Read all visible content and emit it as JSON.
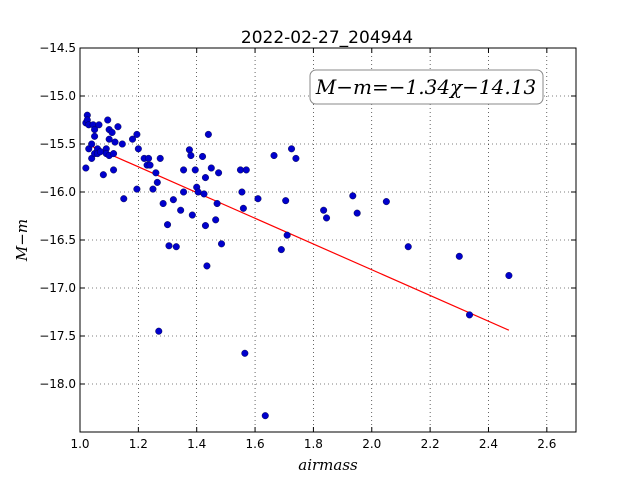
{
  "chart_data": {
    "type": "scatter",
    "title": "2022-02-27_204944",
    "xlabel": "airmass",
    "ylabel": "M−m",
    "xlim": [
      1.0,
      2.7
    ],
    "ylim": [
      -18.5,
      -14.5
    ],
    "y_inverted": true,
    "xticks": [
      1.0,
      1.2,
      1.4,
      1.6,
      1.8,
      2.0,
      2.2,
      2.4,
      2.6
    ],
    "xtick_labels": [
      "1.0",
      "1.2",
      "1.4",
      "1.6",
      "1.8",
      "2.0",
      "2.2",
      "2.4",
      "2.6"
    ],
    "yticks": [
      -14.5,
      -15.0,
      -15.5,
      -16.0,
      -16.5,
      -17.0,
      -17.5,
      -18.0
    ],
    "ytick_labels": [
      "−14.5",
      "−15.0",
      "−15.5",
      "−16.0",
      "−16.5",
      "−17.0",
      "−17.5",
      "−18.0"
    ],
    "grid": true,
    "annotation": "M−m=−1.34χ−14.13",
    "point_color": "#0000cc",
    "line_color": "#ff0000",
    "fit_line": {
      "slope": -1.34,
      "intercept": -14.13,
      "x_range": [
        1.03,
        2.47
      ]
    },
    "points": [
      [
        1.02,
        -15.75
      ],
      [
        1.02,
        -15.28
      ],
      [
        1.025,
        -15.2
      ],
      [
        1.025,
        -15.25
      ],
      [
        1.03,
        -15.55
      ],
      [
        1.03,
        -15.3
      ],
      [
        1.04,
        -15.5
      ],
      [
        1.04,
        -15.65
      ],
      [
        1.045,
        -15.3
      ],
      [
        1.05,
        -15.35
      ],
      [
        1.05,
        -15.42
      ],
      [
        1.05,
        -15.6
      ],
      [
        1.06,
        -15.55
      ],
      [
        1.06,
        -15.6
      ],
      [
        1.065,
        -15.3
      ],
      [
        1.07,
        -15.58
      ],
      [
        1.08,
        -15.82
      ],
      [
        1.09,
        -15.55
      ],
      [
        1.09,
        -15.6
      ],
      [
        1.095,
        -15.25
      ],
      [
        1.1,
        -15.35
      ],
      [
        1.1,
        -15.45
      ],
      [
        1.1,
        -15.62
      ],
      [
        1.11,
        -15.38
      ],
      [
        1.115,
        -15.6
      ],
      [
        1.115,
        -15.77
      ],
      [
        1.12,
        -15.48
      ],
      [
        1.13,
        -15.32
      ],
      [
        1.145,
        -15.5
      ],
      [
        1.15,
        -16.07
      ],
      [
        1.18,
        -15.45
      ],
      [
        1.195,
        -15.4
      ],
      [
        1.195,
        -15.97
      ],
      [
        1.2,
        -15.55
      ],
      [
        1.22,
        -15.65
      ],
      [
        1.23,
        -15.72
      ],
      [
        1.235,
        -15.65
      ],
      [
        1.24,
        -15.72
      ],
      [
        1.25,
        -15.97
      ],
      [
        1.26,
        -15.8
      ],
      [
        1.265,
        -15.9
      ],
      [
        1.27,
        -17.45
      ],
      [
        1.275,
        -15.65
      ],
      [
        1.285,
        -16.12
      ],
      [
        1.3,
        -16.34
      ],
      [
        1.305,
        -16.56
      ],
      [
        1.32,
        -16.08
      ],
      [
        1.33,
        -16.57
      ],
      [
        1.345,
        -16.19
      ],
      [
        1.355,
        -15.77
      ],
      [
        1.355,
        -16.0
      ],
      [
        1.375,
        -15.56
      ],
      [
        1.38,
        -15.62
      ],
      [
        1.385,
        -16.24
      ],
      [
        1.395,
        -15.77
      ],
      [
        1.4,
        -15.95
      ],
      [
        1.405,
        -16.0
      ],
      [
        1.42,
        -15.63
      ],
      [
        1.425,
        -16.02
      ],
      [
        1.43,
        -15.85
      ],
      [
        1.43,
        -16.35
      ],
      [
        1.435,
        -16.77
      ],
      [
        1.44,
        -15.4
      ],
      [
        1.45,
        -15.75
      ],
      [
        1.465,
        -16.29
      ],
      [
        1.47,
        -16.12
      ],
      [
        1.475,
        -15.8
      ],
      [
        1.485,
        -16.54
      ],
      [
        1.55,
        -15.77
      ],
      [
        1.555,
        -16.0
      ],
      [
        1.56,
        -16.17
      ],
      [
        1.565,
        -17.68
      ],
      [
        1.57,
        -15.77
      ],
      [
        1.61,
        -16.07
      ],
      [
        1.635,
        -18.33
      ],
      [
        1.665,
        -15.62
      ],
      [
        1.69,
        -16.6
      ],
      [
        1.705,
        -16.09
      ],
      [
        1.71,
        -16.45
      ],
      [
        1.725,
        -15.55
      ],
      [
        1.74,
        -15.65
      ],
      [
        1.835,
        -16.19
      ],
      [
        1.845,
        -16.27
      ],
      [
        1.935,
        -16.04
      ],
      [
        1.95,
        -16.22
      ],
      [
        2.05,
        -16.1
      ],
      [
        2.125,
        -16.57
      ],
      [
        2.3,
        -16.67
      ],
      [
        2.335,
        -17.28
      ],
      [
        2.47,
        -16.87
      ]
    ]
  }
}
